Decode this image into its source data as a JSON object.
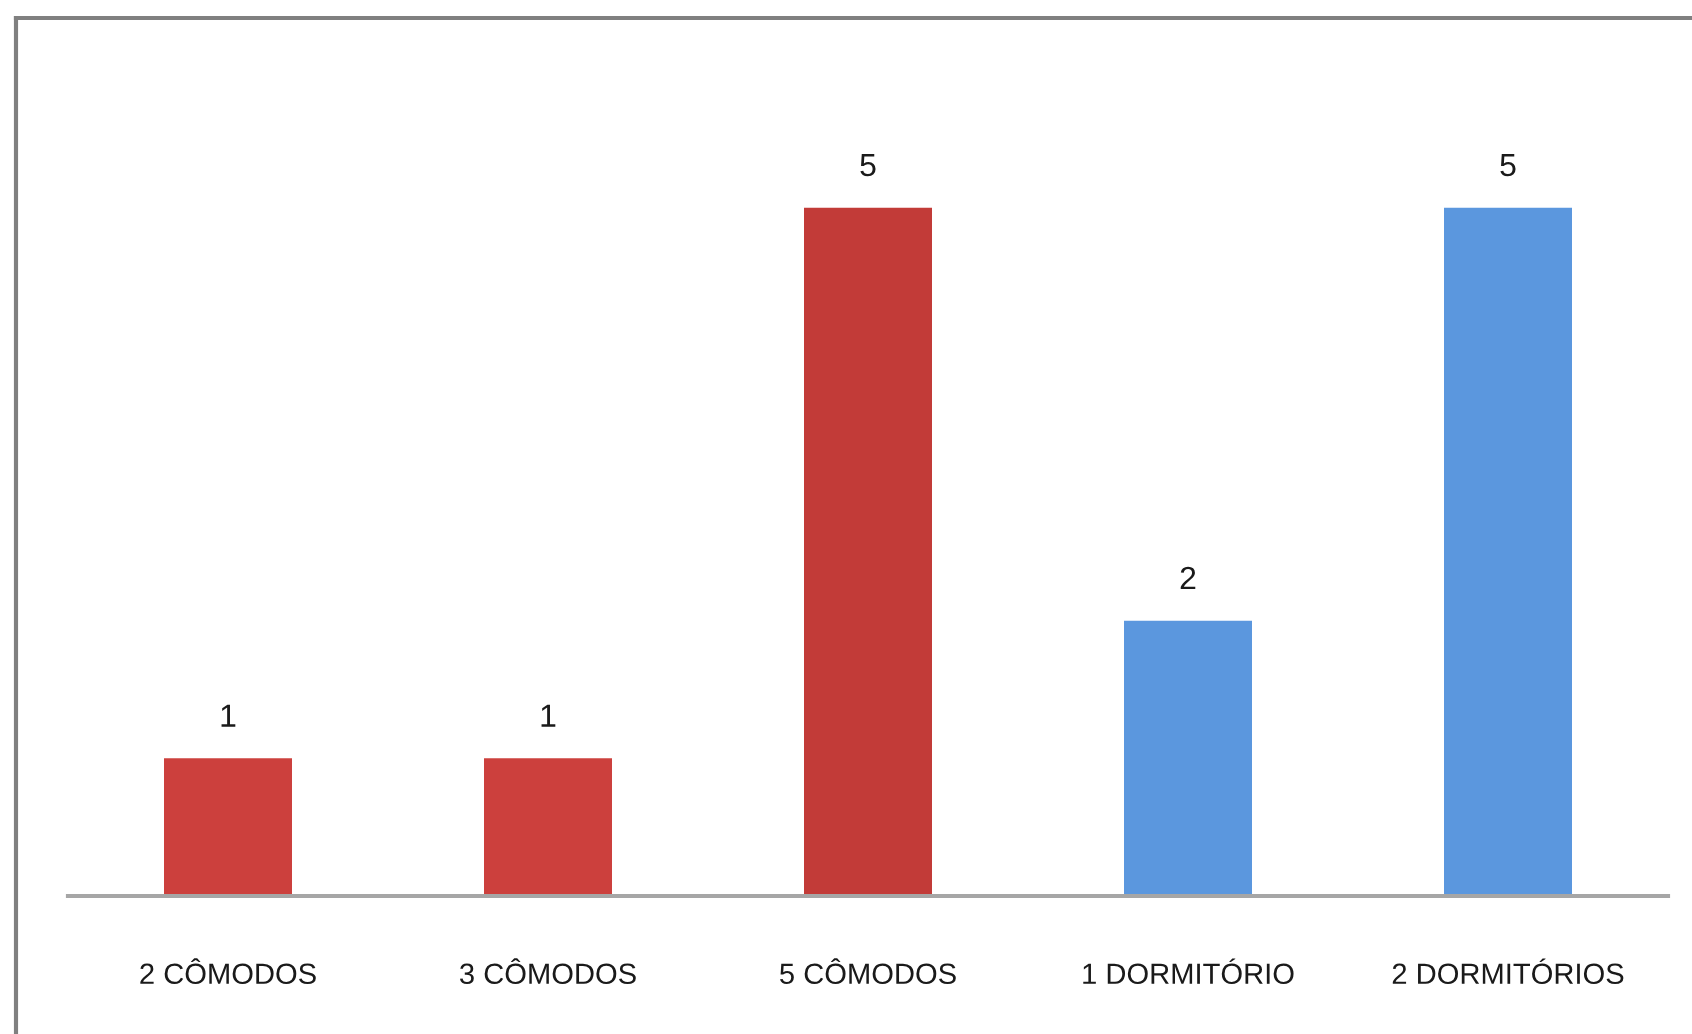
{
  "chart_data": {
    "type": "bar",
    "categories": [
      "2 CÔMODOS",
      "3 CÔMODOS",
      "5 CÔMODOS",
      "1 DORMITÓRIO",
      "2 DORMITÓRIOS"
    ],
    "values": [
      1,
      1,
      5,
      2,
      5
    ],
    "colors": [
      "#cc403d",
      "#cc403d",
      "#c23b38",
      "#5b97de",
      "#5b97de"
    ],
    "data_labels": true,
    "tick_labels": "x"
  }
}
